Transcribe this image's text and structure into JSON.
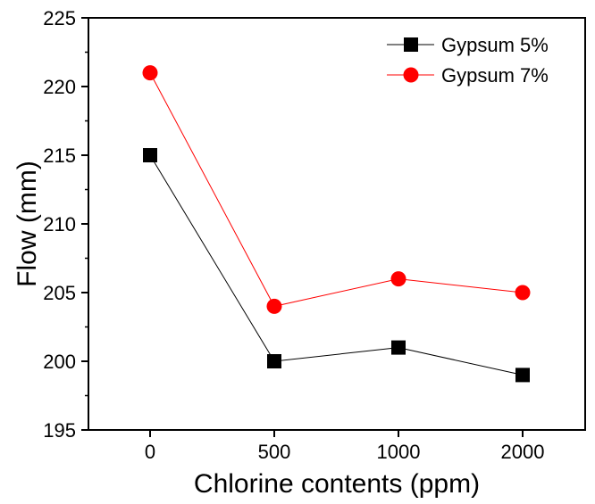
{
  "chart_data": {
    "type": "line",
    "title": "",
    "xlabel": "Chlorine contents (ppm)",
    "ylabel": "Flow (mm)",
    "categories": [
      "0",
      "500",
      "1000",
      "2000"
    ],
    "ylim": [
      195,
      225
    ],
    "yticks": [
      "195",
      "200",
      "205",
      "210",
      "215",
      "220",
      "225"
    ],
    "grid": false,
    "legend_position": "top-right",
    "series": [
      {
        "name": "Gypsum 5%",
        "values": [
          215,
          200,
          201,
          199
        ],
        "color": "#000000",
        "marker": "square"
      },
      {
        "name": "Gypsum 7%",
        "values": [
          221,
          204,
          206,
          205
        ],
        "color": "#ff0000",
        "marker": "circle"
      }
    ]
  }
}
